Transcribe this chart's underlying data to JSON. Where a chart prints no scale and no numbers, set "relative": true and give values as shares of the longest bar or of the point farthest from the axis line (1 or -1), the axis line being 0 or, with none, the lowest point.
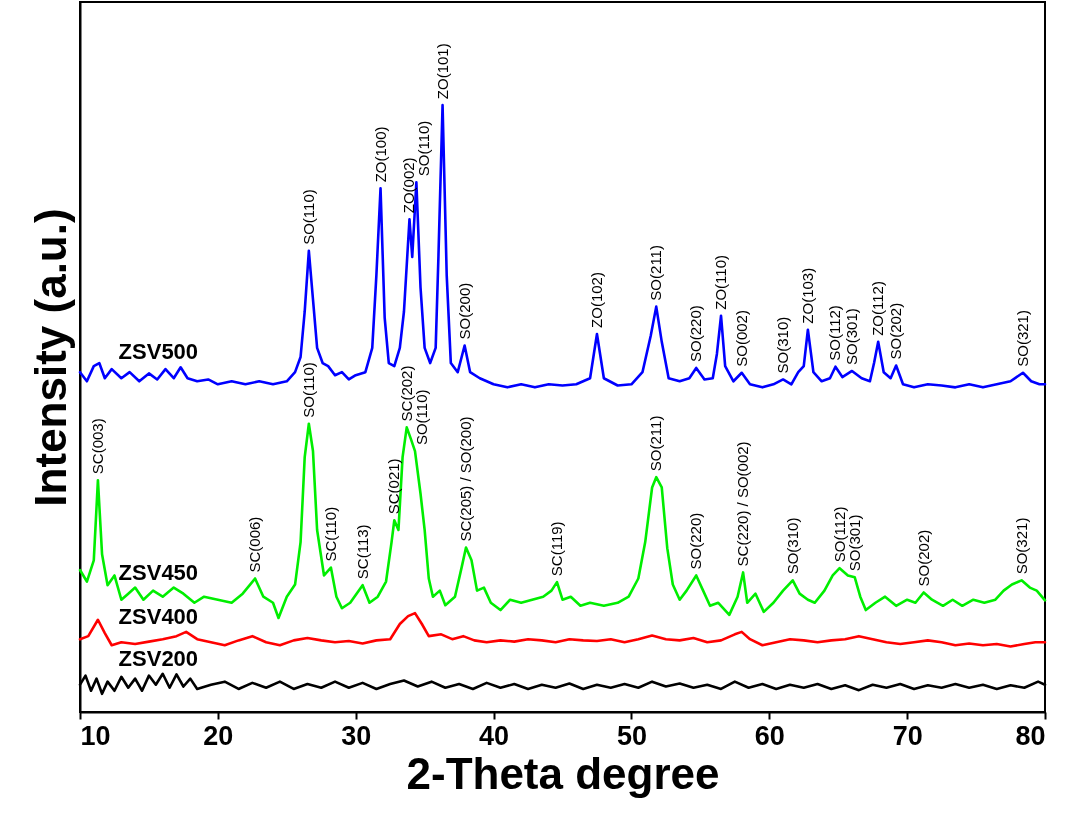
{
  "chart_data": {
    "type": "line",
    "relative": true,
    "xlabel": "2-Theta degree",
    "ylabel": "Intensity (a.u.)",
    "xlim": [
      10,
      80
    ],
    "xticks": [
      10,
      20,
      30,
      40,
      50,
      60,
      70,
      80
    ],
    "grid": false,
    "line_style": "solid",
    "series": [
      {
        "name": "ZSV500",
        "color": "#0000ff",
        "x": [
          10,
          10.5,
          11,
          11.4,
          11.8,
          12.3,
          13,
          13.6,
          14.3,
          15,
          15.6,
          16.2,
          16.8,
          17.3,
          17.8,
          18.5,
          19.3,
          20,
          21,
          22,
          23,
          24,
          25,
          25.6,
          26,
          26.3,
          26.6,
          26.9,
          27.2,
          27.6,
          28,
          28.5,
          29,
          29.5,
          30,
          30.7,
          31.2,
          31.5,
          31.8,
          32.1,
          32.4,
          32.8,
          33.2,
          33.5,
          33.9,
          34.1,
          34.4,
          34.7,
          35.0,
          35.4,
          35.8,
          36.0,
          36.3,
          36.6,
          36.9,
          37.4,
          37.9,
          38.3,
          39,
          40,
          41,
          42,
          43,
          44,
          45,
          46,
          47,
          47.5,
          48,
          49,
          50,
          50.8,
          51.4,
          51.8,
          52.2,
          52.7,
          53.5,
          54.2,
          54.7,
          55.3,
          55.9,
          56.2,
          56.5,
          56.8,
          57.4,
          58.0,
          58.6,
          59.5,
          60.3,
          61,
          61.6,
          62.1,
          62.5,
          62.8,
          63.2,
          63.8,
          64.4,
          64.8,
          65.3,
          66.0,
          66.7,
          67.3,
          67.6,
          67.9,
          68.3,
          68.8,
          69.2,
          69.7,
          70.5,
          71.5,
          72.5,
          73.5,
          74.5,
          75.5,
          76.5,
          77.5,
          78.4,
          79,
          79.6,
          80
        ],
        "values": [
          0.56,
          0.545,
          0.57,
          0.575,
          0.55,
          0.565,
          0.55,
          0.56,
          0.545,
          0.558,
          0.548,
          0.565,
          0.55,
          0.568,
          0.55,
          0.545,
          0.548,
          0.54,
          0.545,
          0.54,
          0.545,
          0.54,
          0.545,
          0.56,
          0.585,
          0.66,
          0.76,
          0.68,
          0.6,
          0.575,
          0.57,
          0.555,
          0.56,
          0.548,
          0.555,
          0.56,
          0.6,
          0.72,
          0.863,
          0.65,
          0.575,
          0.57,
          0.6,
          0.66,
          0.812,
          0.75,
          0.873,
          0.7,
          0.6,
          0.575,
          0.6,
          0.75,
          1.0,
          0.72,
          0.575,
          0.56,
          0.604,
          0.56,
          0.55,
          0.54,
          0.535,
          0.54,
          0.535,
          0.54,
          0.538,
          0.54,
          0.55,
          0.623,
          0.55,
          0.538,
          0.54,
          0.56,
          0.62,
          0.668,
          0.61,
          0.55,
          0.545,
          0.55,
          0.567,
          0.548,
          0.55,
          0.59,
          0.653,
          0.57,
          0.545,
          0.559,
          0.54,
          0.535,
          0.54,
          0.548,
          0.54,
          0.56,
          0.57,
          0.63,
          0.56,
          0.545,
          0.55,
          0.569,
          0.552,
          0.562,
          0.55,
          0.545,
          0.575,
          0.61,
          0.56,
          0.55,
          0.571,
          0.54,
          0.535,
          0.54,
          0.538,
          0.535,
          0.54,
          0.535,
          0.54,
          0.545,
          0.559,
          0.545,
          0.54,
          0.54
        ]
      },
      {
        "name": "ZSV450",
        "color": "#00ee00",
        "x": [
          10,
          10.5,
          11,
          11.3,
          11.6,
          12,
          12.5,
          13,
          13.5,
          14,
          14.6,
          15.3,
          16,
          16.8,
          17.5,
          18.3,
          19,
          20,
          21,
          21.8,
          22.7,
          23.3,
          24,
          24.4,
          25,
          25.6,
          26,
          26.3,
          26.6,
          26.9,
          27.2,
          27.7,
          28.2,
          28.6,
          29,
          29.6,
          30.5,
          31,
          31.6,
          32.2,
          32.6,
          32.8,
          33.1,
          33.4,
          33.7,
          34.0,
          34.3,
          34.7,
          35.0,
          35.3,
          35.6,
          36.1,
          36.5,
          37.2,
          37.7,
          38.0,
          38.4,
          38.8,
          39.3,
          39.8,
          40.5,
          41.2,
          42,
          42.8,
          43.6,
          44.2,
          44.6,
          45,
          45.6,
          46.3,
          47,
          48,
          49,
          49.8,
          50.5,
          51,
          51.5,
          51.8,
          52.2,
          52.6,
          53,
          53.5,
          54,
          54.7,
          55.2,
          55.7,
          56.3,
          57.1,
          57.7,
          58.1,
          58.4,
          59,
          59.6,
          60.3,
          61,
          61.7,
          62.2,
          62.8,
          63.3,
          64,
          64.6,
          65.1,
          65.7,
          66.2,
          66.6,
          67,
          67.7,
          68.4,
          69.2,
          70,
          70.6,
          71.2,
          71.8,
          72.6,
          73.3,
          74,
          74.8,
          75.6,
          76.4,
          77,
          77.6,
          78.3,
          78.9,
          79.4,
          80
        ],
        "values": [
          0.234,
          0.215,
          0.25,
          0.382,
          0.26,
          0.209,
          0.225,
          0.185,
          0.195,
          0.205,
          0.185,
          0.2,
          0.19,
          0.205,
          0.195,
          0.18,
          0.19,
          0.185,
          0.18,
          0.195,
          0.22,
          0.19,
          0.18,
          0.155,
          0.19,
          0.21,
          0.28,
          0.42,
          0.475,
          0.43,
          0.3,
          0.225,
          0.238,
          0.19,
          0.171,
          0.18,
          0.209,
          0.18,
          0.19,
          0.215,
          0.28,
          0.316,
          0.3,
          0.42,
          0.469,
          0.45,
          0.43,
          0.36,
          0.3,
          0.22,
          0.19,
          0.2,
          0.176,
          0.19,
          0.24,
          0.271,
          0.25,
          0.2,
          0.205,
          0.18,
          0.168,
          0.185,
          0.18,
          0.185,
          0.19,
          0.2,
          0.214,
          0.185,
          0.19,
          0.175,
          0.18,
          0.175,
          0.18,
          0.19,
          0.22,
          0.28,
          0.37,
          0.387,
          0.37,
          0.27,
          0.21,
          0.185,
          0.2,
          0.225,
          0.2,
          0.175,
          0.18,
          0.16,
          0.19,
          0.23,
          0.18,
          0.195,
          0.165,
          0.18,
          0.2,
          0.217,
          0.195,
          0.185,
          0.18,
          0.2,
          0.225,
          0.237,
          0.225,
          0.222,
          0.19,
          0.168,
          0.18,
          0.19,
          0.175,
          0.185,
          0.18,
          0.197,
          0.185,
          0.175,
          0.185,
          0.175,
          0.185,
          0.18,
          0.185,
          0.2,
          0.21,
          0.217,
          0.205,
          0.2,
          0.184
        ]
      },
      {
        "name": "ZSV400",
        "color": "#ff0000",
        "x": [
          10,
          10.6,
          11.3,
          11.8,
          12.3,
          13,
          14,
          15,
          16,
          17,
          17.7,
          18.5,
          19.5,
          20.5,
          21.5,
          22.5,
          23.5,
          24.5,
          25.5,
          26.5,
          27.5,
          28.5,
          29.5,
          30.5,
          31.5,
          32.5,
          33.2,
          33.8,
          34.3,
          34.8,
          35.3,
          36.2,
          37,
          37.8,
          38.6,
          39.5,
          40.5,
          41.5,
          42.5,
          43.5,
          44.5,
          45.5,
          46.5,
          47.5,
          48.5,
          49.5,
          50.5,
          51.5,
          52.5,
          53.5,
          54.5,
          55.5,
          56.5,
          57.5,
          58,
          58.6,
          59.5,
          60.5,
          61.5,
          62.5,
          63.5,
          64.5,
          65.5,
          66.5,
          67.5,
          68.5,
          69.5,
          70.5,
          71.5,
          72.5,
          73.5,
          74.5,
          75.5,
          76.5,
          77.5,
          78.5,
          79.3,
          80
        ],
        "values": [
          0.12,
          0.125,
          0.152,
          0.13,
          0.11,
          0.115,
          0.112,
          0.116,
          0.12,
          0.125,
          0.132,
          0.12,
          0.115,
          0.11,
          0.118,
          0.125,
          0.115,
          0.11,
          0.118,
          0.122,
          0.118,
          0.115,
          0.117,
          0.113,
          0.118,
          0.12,
          0.145,
          0.158,
          0.163,
          0.145,
          0.125,
          0.128,
          0.12,
          0.125,
          0.118,
          0.115,
          0.118,
          0.116,
          0.12,
          0.118,
          0.115,
          0.12,
          0.118,
          0.117,
          0.12,
          0.115,
          0.12,
          0.126,
          0.12,
          0.118,
          0.122,
          0.115,
          0.118,
          0.128,
          0.132,
          0.12,
          0.11,
          0.115,
          0.12,
          0.118,
          0.115,
          0.118,
          0.12,
          0.125,
          0.12,
          0.115,
          0.112,
          0.115,
          0.118,
          0.115,
          0.11,
          0.113,
          0.11,
          0.112,
          0.108,
          0.112,
          0.115,
          0.115
        ]
      },
      {
        "name": "ZSV200",
        "color": "#000000",
        "x": [
          10,
          10.4,
          10.8,
          11.2,
          11.6,
          12,
          12.5,
          13,
          13.5,
          14,
          14.5,
          15,
          15.5,
          16,
          16.5,
          17,
          17.5,
          18,
          18.5,
          19.5,
          20.5,
          21.5,
          22.5,
          23.5,
          24.5,
          25.5,
          26.5,
          27.5,
          28.5,
          29.5,
          30.5,
          31.5,
          32.5,
          33.5,
          34.5,
          35.5,
          36.5,
          37.5,
          38.5,
          39.5,
          40.5,
          41.5,
          42.5,
          43.5,
          44.5,
          45.5,
          46.5,
          47.5,
          48.5,
          49.5,
          50.5,
          51.5,
          52.5,
          53.5,
          54.5,
          55.5,
          56.5,
          57.5,
          58.5,
          59.5,
          60.5,
          61.5,
          62.5,
          63.5,
          64.5,
          65.5,
          66.5,
          67.5,
          68.5,
          69.5,
          70.5,
          71.5,
          72.5,
          73.5,
          74.5,
          75.5,
          76.5,
          77.5,
          78.5,
          79.5,
          80
        ],
        "values": [
          0.045,
          0.06,
          0.035,
          0.055,
          0.03,
          0.05,
          0.035,
          0.058,
          0.04,
          0.055,
          0.035,
          0.06,
          0.045,
          0.063,
          0.04,
          0.062,
          0.042,
          0.055,
          0.038,
          0.045,
          0.05,
          0.038,
          0.048,
          0.04,
          0.05,
          0.038,
          0.046,
          0.04,
          0.05,
          0.04,
          0.048,
          0.038,
          0.046,
          0.052,
          0.042,
          0.05,
          0.04,
          0.046,
          0.038,
          0.048,
          0.04,
          0.046,
          0.038,
          0.045,
          0.04,
          0.047,
          0.038,
          0.045,
          0.04,
          0.046,
          0.04,
          0.05,
          0.042,
          0.047,
          0.04,
          0.045,
          0.038,
          0.05,
          0.04,
          0.046,
          0.038,
          0.045,
          0.04,
          0.046,
          0.038,
          0.044,
          0.036,
          0.045,
          0.04,
          0.046,
          0.038,
          0.044,
          0.04,
          0.046,
          0.04,
          0.045,
          0.038,
          0.044,
          0.04,
          0.05,
          0.045
        ]
      }
    ],
    "annotations": [
      {
        "text": "SO(110)",
        "x": 26.6,
        "y": 0.76
      },
      {
        "text": "ZO(100)",
        "x": 31.8,
        "y": 0.863
      },
      {
        "text": "ZO(002)",
        "x": 33.9,
        "y": 0.812
      },
      {
        "text": "SO(110)",
        "x": 34.4,
        "y": 0.873
      },
      {
        "text": "ZO(101)",
        "x": 36.3,
        "y": 1.0
      },
      {
        "text": "SO(200)",
        "x": 37.9,
        "y": 0.604
      },
      {
        "text": "ZO(102)",
        "x": 47.5,
        "y": 0.623
      },
      {
        "text": "SO(211)",
        "x": 51.8,
        "y": 0.668
      },
      {
        "text": "SO(220)",
        "x": 54.7,
        "y": 0.567
      },
      {
        "text": "ZO(110)",
        "x": 56.5,
        "y": 0.653
      },
      {
        "text": "SO(002)",
        "x": 58.0,
        "y": 0.559
      },
      {
        "text": "SO(310)",
        "x": 61,
        "y": 0.548
      },
      {
        "text": "ZO(103)",
        "x": 62.8,
        "y": 0.63
      },
      {
        "text": "SO(112)",
        "x": 64.8,
        "y": 0.569
      },
      {
        "text": "SO(301)",
        "x": 66.0,
        "y": 0.562
      },
      {
        "text": "ZO(112)",
        "x": 67.9,
        "y": 0.61
      },
      {
        "text": "SO(202)",
        "x": 69.2,
        "y": 0.571
      },
      {
        "text": "SO(321)",
        "x": 78.4,
        "y": 0.559
      },
      {
        "text": "SC(003)",
        "x": 11.3,
        "y": 0.382
      },
      {
        "text": "SO(110)",
        "x": 26.6,
        "y": 0.475
      },
      {
        "text": "SC(006)",
        "x": 22.7,
        "y": 0.22
      },
      {
        "text": "SC(110)",
        "x": 28.2,
        "y": 0.238
      },
      {
        "text": "SC(113)",
        "x": 30.5,
        "y": 0.209
      },
      {
        "text": "SC(021)",
        "x": 32.8,
        "y": 0.316
      },
      {
        "text": "SC(202)",
        "x": 33.7,
        "y": 0.469
      },
      {
        "text": "SO(110)",
        "x": 34.3,
        "y": 0.43
      },
      {
        "text": "SC(205) / SO(200)",
        "x": 38.0,
        "y": 0.271
      },
      {
        "text": "SC(119)",
        "x": 44.6,
        "y": 0.214
      },
      {
        "text": "SO(211)",
        "x": 51.8,
        "y": 0.387
      },
      {
        "text": "SO(220)",
        "x": 54.7,
        "y": 0.225
      },
      {
        "text": "SC(220) / SO(002)",
        "x": 58.1,
        "y": 0.23
      },
      {
        "text": "SO(310)",
        "x": 61.7,
        "y": 0.217
      },
      {
        "text": "SO(112)",
        "x": 65.1,
        "y": 0.237
      },
      {
        "text": "SO(301)",
        "x": 66.2,
        "y": 0.222
      },
      {
        "text": "SO(202)",
        "x": 71.2,
        "y": 0.197
      },
      {
        "text": "SO(321)",
        "x": 78.3,
        "y": 0.217
      }
    ]
  }
}
